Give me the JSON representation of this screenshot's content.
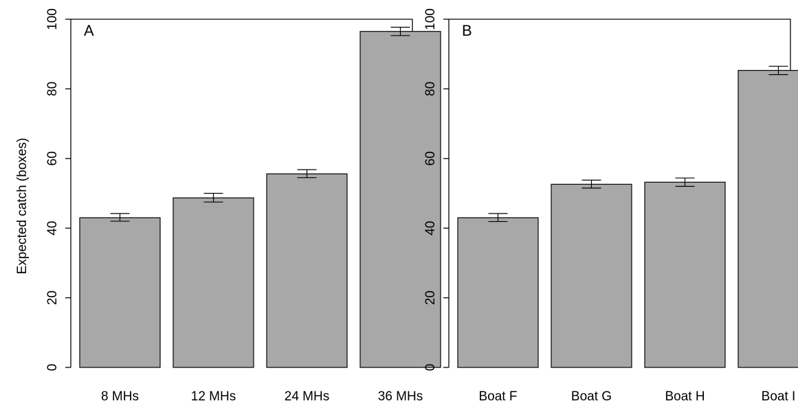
{
  "figure": {
    "ylabel": "Expected catch (boxes)"
  },
  "colors": {
    "bar_fill": "#a8a8a8",
    "bar_stroke": "#000000",
    "axis": "#000000"
  },
  "chart_data": [
    {
      "type": "bar",
      "panel_label": "A",
      "categories": [
        "8 MHs",
        "12 MHs",
        "24 MHs",
        "36 MHs"
      ],
      "values": [
        43,
        48.7,
        55.6,
        96.5
      ],
      "error_low": [
        42,
        47.5,
        54.5,
        95.3
      ],
      "error_high": [
        44.2,
        50,
        56.8,
        97.7
      ],
      "yticks": [
        0,
        20,
        40,
        60,
        80,
        100
      ],
      "ylim": [
        0,
        100
      ],
      "ylabel": "Expected catch (boxes)",
      "xlabel": "",
      "grid": false
    },
    {
      "type": "bar",
      "panel_label": "B",
      "categories": [
        "Boat F",
        "Boat G",
        "Boat H",
        "Boat I"
      ],
      "values": [
        43,
        52.6,
        53.2,
        85.3
      ],
      "error_low": [
        41.9,
        51.5,
        52,
        84.1
      ],
      "error_high": [
        44.2,
        53.8,
        54.4,
        86.5
      ],
      "yticks": [
        0,
        20,
        40,
        60,
        80,
        100
      ],
      "ylim": [
        0,
        100
      ],
      "ylabel": "",
      "xlabel": "",
      "grid": false
    }
  ]
}
